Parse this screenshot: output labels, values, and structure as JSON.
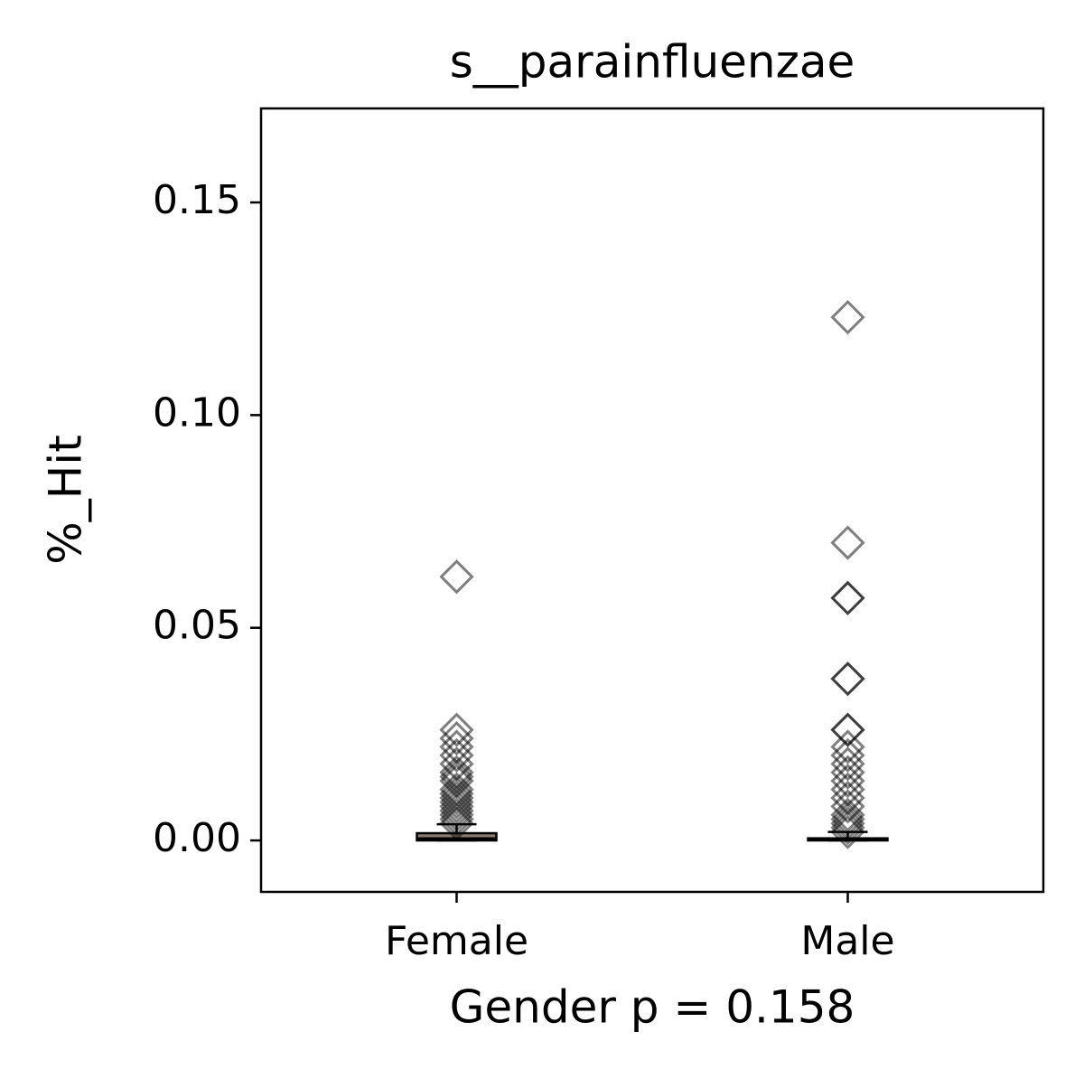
{
  "chart_data": {
    "type": "box",
    "title": "s__parainfluenzae",
    "x_label": "Gender p = 0.158",
    "y_label": "%_Hit",
    "categories": [
      "Female",
      "Male"
    ],
    "boxes": [
      {
        "whislo": 0,
        "q1": 0,
        "median": 0.0005,
        "q3": 0.0017,
        "whishi": 0.0038,
        "fliers": [
          0.062,
          0.026,
          0.024,
          0.022,
          0.02,
          0.018,
          0.016,
          0.015,
          0.014,
          0.012,
          0.011,
          0.01,
          0.009,
          0.008,
          0.007,
          0.006,
          0.005,
          0.004
        ]
      },
      {
        "whislo": 0,
        "q1": 0,
        "median": 0.0002,
        "q3": 0.0005,
        "whishi": 0.002,
        "fliers": [
          0.123,
          0.07,
          0.057,
          0.057,
          0.038,
          0.038,
          0.026,
          0.026,
          0.022,
          0.02,
          0.018,
          0.016,
          0.014,
          0.012,
          0.01,
          0.008,
          0.006,
          0.005,
          0.004,
          0.003,
          0.002
        ]
      }
    ],
    "box_color": "#8c7b70",
    "flier_color": "#000000",
    "ylim": [
      -0.0121,
      0.1721
    ],
    "yticks": [
      {
        "value": 0,
        "label": "0.00"
      },
      0.05,
      {
        "value": 0.1,
        "label": "0.10"
      },
      0.15
    ]
  }
}
